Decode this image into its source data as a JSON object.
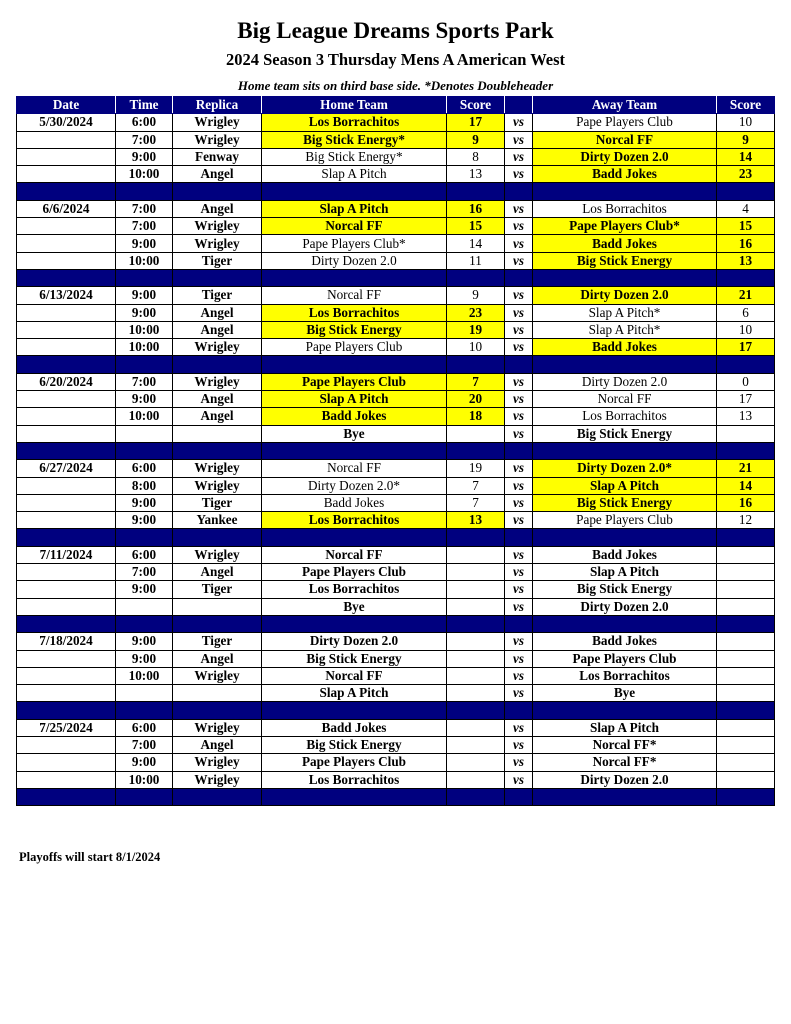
{
  "title": "Big League Dreams Sports Park",
  "subtitle": "2024 Season 3 Thursday Mens A American West",
  "note": "Home team sits on third base side.  *Denotes Doubleheader",
  "footer": "Playoffs will start 8/1/2024",
  "colors": {
    "header_bg": "#00007f",
    "winner_highlight": "#ffff00"
  },
  "columns": [
    "Date",
    "Time",
    "Replica",
    "Home Team",
    "Score",
    "",
    "Away Team",
    "Score"
  ],
  "vs_label": "vs",
  "weeks": [
    {
      "date": "5/30/2024",
      "games": [
        {
          "time": "6:00",
          "replica": "Wrigley",
          "home": "Los Borrachitos",
          "home_score": "17",
          "away": "Pape Players Club",
          "away_score": "10",
          "winner": "home"
        },
        {
          "time": "7:00",
          "replica": "Wrigley",
          "home": "Big Stick Energy*",
          "home_score": "9",
          "away": "Norcal FF",
          "away_score": "9",
          "winner": "both"
        },
        {
          "time": "9:00",
          "replica": "Fenway",
          "home": "Big Stick Energy*",
          "home_score": "8",
          "away": "Dirty Dozen 2.0",
          "away_score": "14",
          "winner": "away"
        },
        {
          "time": "10:00",
          "replica": "Angel",
          "home": "Slap A Pitch",
          "home_score": "13",
          "away": "Badd Jokes",
          "away_score": "23",
          "winner": "away"
        }
      ]
    },
    {
      "date": "6/6/2024",
      "games": [
        {
          "time": "7:00",
          "replica": "Angel",
          "home": "Slap A Pitch",
          "home_score": "16",
          "away": "Los Borrachitos",
          "away_score": "4",
          "winner": "home"
        },
        {
          "time": "7:00",
          "replica": "Wrigley",
          "home": "Norcal FF",
          "home_score": "15",
          "away": "Pape Players Club*",
          "away_score": "15",
          "winner": "both"
        },
        {
          "time": "9:00",
          "replica": "Wrigley",
          "home": "Pape Players Club*",
          "home_score": "14",
          "away": "Badd Jokes",
          "away_score": "16",
          "winner": "away"
        },
        {
          "time": "10:00",
          "replica": "Tiger",
          "home": "Dirty Dozen 2.0",
          "home_score": "11",
          "away": "Big Stick Energy",
          "away_score": "13",
          "winner": "away"
        }
      ]
    },
    {
      "date": "6/13/2024",
      "games": [
        {
          "time": "9:00",
          "replica": "Tiger",
          "home": "Norcal FF",
          "home_score": "9",
          "away": "Dirty Dozen 2.0",
          "away_score": "21",
          "winner": "away"
        },
        {
          "time": "9:00",
          "replica": "Angel",
          "home": "Los Borrachitos",
          "home_score": "23",
          "away": "Slap A Pitch*",
          "away_score": "6",
          "winner": "home"
        },
        {
          "time": "10:00",
          "replica": "Angel",
          "home": "Big Stick Energy",
          "home_score": "19",
          "away": "Slap A Pitch*",
          "away_score": "10",
          "winner": "home"
        },
        {
          "time": "10:00",
          "replica": "Wrigley",
          "home": "Pape Players Club",
          "home_score": "10",
          "away": "Badd Jokes",
          "away_score": "17",
          "winner": "away"
        }
      ]
    },
    {
      "date": "6/20/2024",
      "games": [
        {
          "time": "7:00",
          "replica": "Wrigley",
          "home": "Pape Players Club",
          "home_score": "7",
          "away": "Dirty Dozen 2.0",
          "away_score": "0",
          "winner": "home"
        },
        {
          "time": "9:00",
          "replica": "Angel",
          "home": "Slap A Pitch",
          "home_score": "20",
          "away": "Norcal FF",
          "away_score": "17",
          "winner": "home"
        },
        {
          "time": "10:00",
          "replica": "Angel",
          "home": "Badd Jokes",
          "home_score": "18",
          "away": "Los Borrachitos",
          "away_score": "13",
          "winner": "home"
        },
        {
          "time": "",
          "replica": "",
          "home": "Bye",
          "home_score": "",
          "away": "Big Stick Energy",
          "away_score": "",
          "winner": "none"
        }
      ]
    },
    {
      "date": "6/27/2024",
      "games": [
        {
          "time": "6:00",
          "replica": "Wrigley",
          "home": "Norcal FF",
          "home_score": "19",
          "away": "Dirty Dozen 2.0*",
          "away_score": "21",
          "winner": "away"
        },
        {
          "time": "8:00",
          "replica": "Wrigley",
          "home": "Dirty Dozen 2.0*",
          "home_score": "7",
          "away": "Slap A Pitch",
          "away_score": "14",
          "winner": "away"
        },
        {
          "time": "9:00",
          "replica": "Tiger",
          "home": "Badd Jokes",
          "home_score": "7",
          "away": "Big Stick Energy",
          "away_score": "16",
          "winner": "away"
        },
        {
          "time": "9:00",
          "replica": "Yankee",
          "home": "Los Borrachitos",
          "home_score": "13",
          "away": "Pape Players Club",
          "away_score": "12",
          "winner": "home"
        }
      ]
    },
    {
      "date": "7/11/2024",
      "games": [
        {
          "time": "6:00",
          "replica": "Wrigley",
          "home": "Norcal FF",
          "home_score": "",
          "away": "Badd Jokes",
          "away_score": "",
          "winner": "none"
        },
        {
          "time": "7:00",
          "replica": "Angel",
          "home": "Pape Players Club",
          "home_score": "",
          "away": "Slap A Pitch",
          "away_score": "",
          "winner": "none"
        },
        {
          "time": "9:00",
          "replica": "Tiger",
          "home": "Los Borrachitos",
          "home_score": "",
          "away": "Big Stick Energy",
          "away_score": "",
          "winner": "none"
        },
        {
          "time": "",
          "replica": "",
          "home": "Bye",
          "home_score": "",
          "away": "Dirty Dozen 2.0",
          "away_score": "",
          "winner": "none"
        }
      ]
    },
    {
      "date": "7/18/2024",
      "games": [
        {
          "time": "9:00",
          "replica": "Tiger",
          "home": "Dirty Dozen 2.0",
          "home_score": "",
          "away": "Badd Jokes",
          "away_score": "",
          "winner": "none"
        },
        {
          "time": "9:00",
          "replica": "Angel",
          "home": "Big Stick Energy",
          "home_score": "",
          "away": "Pape Players Club",
          "away_score": "",
          "winner": "none"
        },
        {
          "time": "10:00",
          "replica": "Wrigley",
          "home": "Norcal FF",
          "home_score": "",
          "away": "Los Borrachitos",
          "away_score": "",
          "winner": "none"
        },
        {
          "time": "",
          "replica": "",
          "home": "Slap A Pitch",
          "home_score": "",
          "away": "Bye",
          "away_score": "",
          "winner": "none"
        }
      ]
    },
    {
      "date": "7/25/2024",
      "games": [
        {
          "time": "6:00",
          "replica": "Wrigley",
          "home": "Badd Jokes",
          "home_score": "",
          "away": "Slap A Pitch",
          "away_score": "",
          "winner": "none"
        },
        {
          "time": "7:00",
          "replica": "Angel",
          "home": "Big Stick Energy",
          "home_score": "",
          "away": "Norcal FF*",
          "away_score": "",
          "winner": "none"
        },
        {
          "time": "9:00",
          "replica": "Wrigley",
          "home": "Pape Players Club",
          "home_score": "",
          "away": "Norcal FF*",
          "away_score": "",
          "winner": "none"
        },
        {
          "time": "10:00",
          "replica": "Wrigley",
          "home": "Los Borrachitos",
          "home_score": "",
          "away": "Dirty Dozen 2.0",
          "away_score": "",
          "winner": "none"
        }
      ]
    }
  ]
}
